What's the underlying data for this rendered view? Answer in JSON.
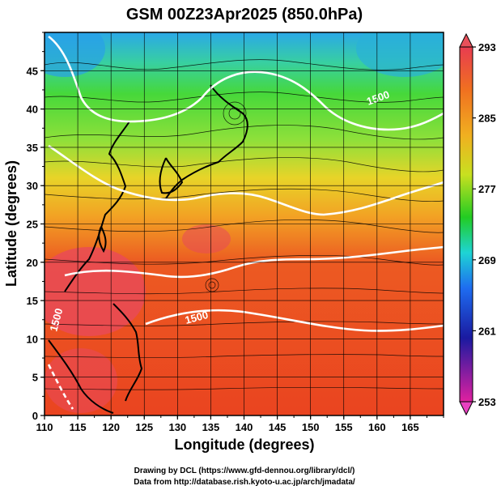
{
  "title": "GSM 00Z23Apr2025 (850.0hPa)",
  "x_axis": {
    "label": "Longitude (degrees)",
    "ticks": [
      "110",
      "115",
      "120",
      "125",
      "130",
      "135",
      "140",
      "145",
      "150",
      "155",
      "160",
      "165"
    ],
    "range": [
      110,
      170
    ]
  },
  "y_axis": {
    "label": "Latitude  (degrees)",
    "ticks": [
      "0",
      "5",
      "10",
      "15",
      "20",
      "25",
      "30",
      "35",
      "40",
      "45"
    ],
    "range": [
      0,
      50
    ]
  },
  "colorbar": {
    "labels": [
      "293",
      "285",
      "277",
      "269",
      "261",
      "253"
    ],
    "range": [
      253,
      293
    ],
    "colors": [
      "#e0208a",
      "#1a1aa0",
      "#1e6cf0",
      "#1ed4d4",
      "#22cc22",
      "#a8e020",
      "#f0d020",
      "#f08a20",
      "#e83c1e",
      "#e03850"
    ]
  },
  "contours": {
    "labels": [
      "1500",
      "1500",
      "1500"
    ]
  },
  "credits": {
    "line1": "Drawing by DCL (https://www.gfd-dennou.org/library/dcl/)",
    "line2": "Data from http://database.rish.kyoto-u.ac.jp/arch/jmadata/"
  }
}
